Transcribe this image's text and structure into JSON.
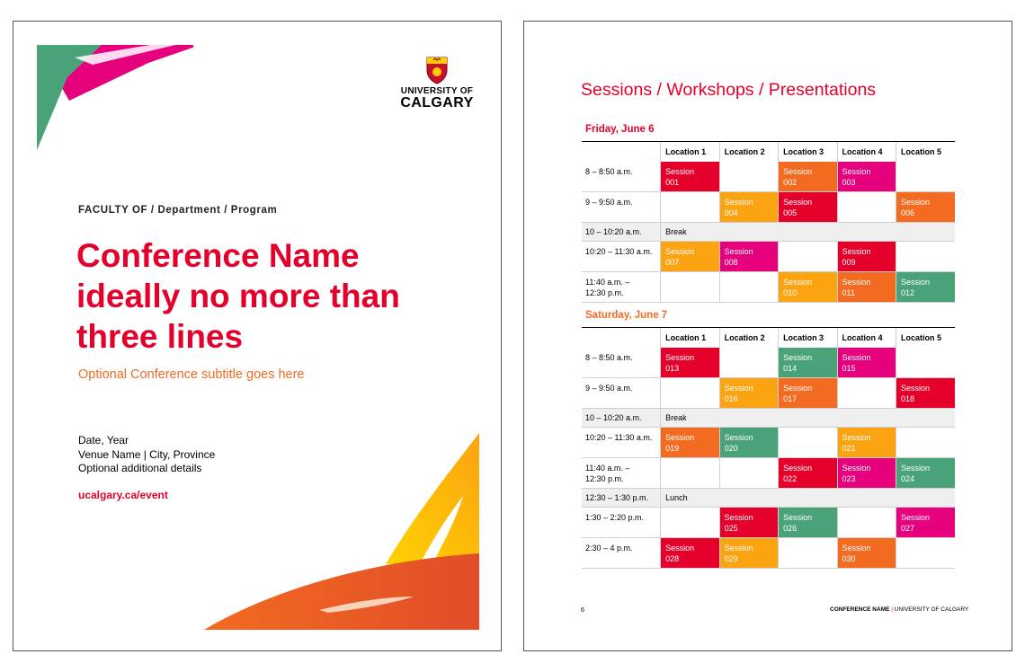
{
  "cover": {
    "university_line1": "UNIVERSITY OF",
    "university_line2": "CALGARY",
    "faculty": "FACULTY OF / Department / Program",
    "title_lines": [
      "Conference Name",
      "ideally no more than",
      "three lines"
    ],
    "subtitle": "Optional Conference subtitle goes here",
    "details": [
      "Date, Year",
      "Venue Name | City, Province",
      "Optional additional details"
    ],
    "url": "ucalgary.ca/event",
    "colors": {
      "red": "#e4002b",
      "orange": "#f26b21",
      "amber": "#fca311",
      "pink": "#e6007e",
      "green": "#4aa378"
    }
  },
  "schedule": {
    "title": "Sessions / Workshops / Presentations",
    "locations": [
      "Location 1",
      "Location 2",
      "Location 3",
      "Location 4",
      "Location 5"
    ],
    "days": [
      {
        "label": "Friday, June 6",
        "rows": [
          {
            "time": "8 – 8:50 a.m.",
            "cells": [
              {
                "text": "Session\n001",
                "color": "red"
              },
              null,
              {
                "text": "Session\n002",
                "color": "orange"
              },
              {
                "text": "Session\n003",
                "color": "pink"
              },
              null
            ]
          },
          {
            "time": "9 – 9:50 a.m.",
            "cells": [
              null,
              {
                "text": "Session\n004",
                "color": "amber"
              },
              {
                "text": "Session\n005",
                "color": "red"
              },
              null,
              {
                "text": "Session\n006",
                "color": "orange"
              }
            ]
          },
          {
            "time": "10 – 10:20 a.m.",
            "break": "Break"
          },
          {
            "time": "10:20 – 11:30 a.m.",
            "cells": [
              {
                "text": "Session\n007",
                "color": "amber"
              },
              {
                "text": "Session\n008",
                "color": "pink"
              },
              null,
              {
                "text": "Session\n009",
                "color": "red"
              },
              null
            ]
          },
          {
            "time": "11:40 a.m. –\n12:30 p.m.",
            "cells": [
              null,
              null,
              {
                "text": "Session\n010",
                "color": "amber"
              },
              {
                "text": "Session\n011",
                "color": "orange"
              },
              {
                "text": "Session\n012",
                "color": "green"
              }
            ]
          }
        ]
      },
      {
        "label": "Saturday, June 7",
        "rows": [
          {
            "time": "8 – 8:50 a.m.",
            "cells": [
              {
                "text": "Session\n013",
                "color": "red"
              },
              null,
              {
                "text": "Session\n014",
                "color": "green"
              },
              {
                "text": "Session\n015",
                "color": "pink"
              },
              null
            ]
          },
          {
            "time": "9 – 9:50 a.m.",
            "cells": [
              null,
              {
                "text": "Session\n016",
                "color": "amber"
              },
              {
                "text": "Session\n017",
                "color": "orange"
              },
              null,
              {
                "text": "Session\n018",
                "color": "red"
              }
            ]
          },
          {
            "time": "10 – 10:20 a.m.",
            "break": "Break"
          },
          {
            "time": "10:20 – 11:30 a.m.",
            "cells": [
              {
                "text": "Session\n019",
                "color": "orange"
              },
              {
                "text": "Session\n020",
                "color": "green"
              },
              null,
              {
                "text": "Session\n021",
                "color": "amber"
              },
              null
            ]
          },
          {
            "time": "11:40 a.m. –\n12:30 p.m.",
            "cells": [
              null,
              null,
              {
                "text": "Session\n022",
                "color": "red"
              },
              {
                "text": "Session\n023",
                "color": "pink"
              },
              {
                "text": "Session\n024",
                "color": "green"
              }
            ]
          },
          {
            "time": "12:30 – 1:30 p.m.",
            "break": "Lunch"
          },
          {
            "time": "1:30 – 2:20 p.m.",
            "cells": [
              null,
              {
                "text": "Session\n025",
                "color": "red"
              },
              {
                "text": "Session\n026",
                "color": "green"
              },
              null,
              {
                "text": "Session\n027",
                "color": "pink"
              }
            ]
          },
          {
            "time": "2:30 – 4 p.m.",
            "cells": [
              {
                "text": "Session\n028",
                "color": "red"
              },
              {
                "text": "Session\n029",
                "color": "amber"
              },
              null,
              {
                "text": "Session\n030",
                "color": "orange"
              },
              null
            ]
          }
        ]
      }
    ],
    "footer": {
      "page_number": "6",
      "conference": "CONFERENCE NAME",
      "separator": "|",
      "university": "UNIVERSITY OF CALGARY"
    }
  }
}
